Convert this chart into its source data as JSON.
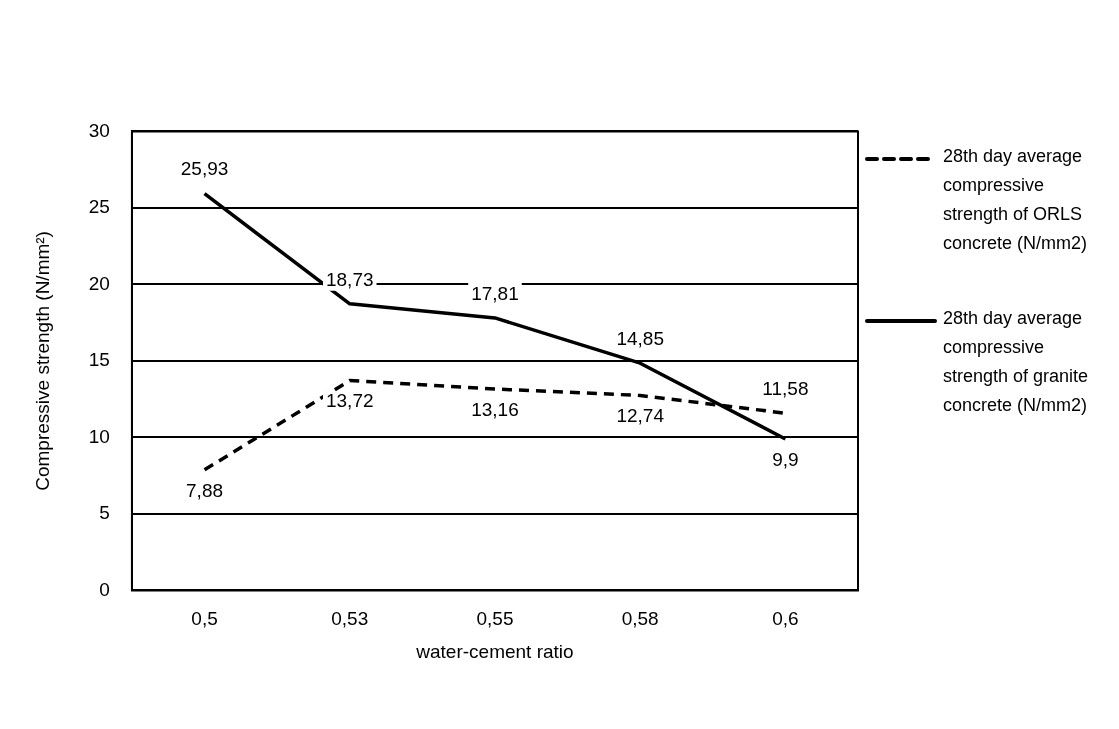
{
  "chart_data": {
    "type": "line",
    "xlabel": "water-cement ratio",
    "ylabel": "Compressive strength (N/mm²)",
    "categories": [
      "0,5",
      "0,53",
      "0,55",
      "0,58",
      "0,6"
    ],
    "series": [
      {
        "name": "28th day average compressive strength of ORLS concrete (N/mm2)",
        "color": "#000000",
        "line_style": "dashed",
        "values": [
          7.88,
          13.72,
          13.16,
          12.74,
          11.58
        ],
        "value_labels": [
          "7,88",
          "13,72",
          "13,16",
          "12,74",
          "11,58"
        ]
      },
      {
        "name": "28th day average compressive strength of granite concrete (N/mm2)",
        "color": "#000000",
        "line_style": "solid",
        "values": [
          25.93,
          18.73,
          17.81,
          14.85,
          9.9
        ],
        "value_labels": [
          "25,93",
          "18,73",
          "17,81",
          "14,85",
          "9,9"
        ]
      }
    ],
    "ylim": [
      0,
      30
    ],
    "yticks": [
      0,
      5,
      10,
      15,
      20,
      25,
      30
    ],
    "grid": "y",
    "legend": "right",
    "marker": "none"
  }
}
